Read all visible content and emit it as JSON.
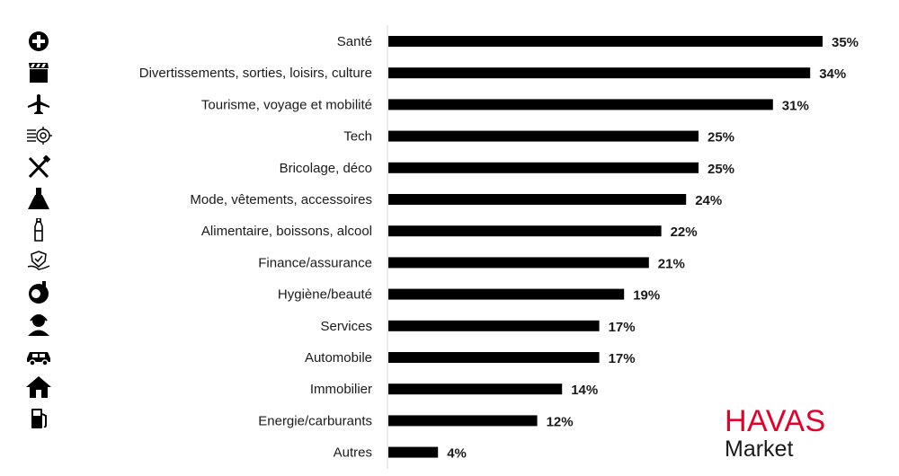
{
  "chart_data": {
    "type": "bar",
    "orientation": "horizontal",
    "categories": [
      "Santé",
      "Divertissements, sorties, loisirs, culture",
      "Tourisme, voyage et mobilité",
      "Tech",
      "Bricolage, déco",
      "Mode, vêtements, accessoires",
      "Alimentaire, boissons, alcool",
      "Finance/assurance",
      "Hygiène/beauté",
      "Services",
      "Automobile",
      "Immobilier",
      "Energie/carburants",
      "Autres"
    ],
    "values": [
      35,
      34,
      31,
      25,
      25,
      24,
      22,
      21,
      19,
      17,
      17,
      14,
      12,
      4
    ],
    "value_labels": [
      "35%",
      "34%",
      "31%",
      "25%",
      "25%",
      "24%",
      "22%",
      "21%",
      "19%",
      "17%",
      "17%",
      "14%",
      "12%",
      "4%"
    ],
    "xlim": [
      0,
      35
    ],
    "grid": false,
    "bar_color": "#000000"
  },
  "icons": [
    "medical-cross-icon",
    "clapperboard-icon",
    "airplane-icon",
    "chip-gear-icon",
    "tools-icon",
    "dress-icon",
    "bottle-icon",
    "shield-hand-icon",
    "beauty-face-icon",
    "person-headset-icon",
    "car-icon",
    "house-icon",
    "fuel-pump-icon"
  ],
  "logo": {
    "brand": "HAVAS",
    "sub": "Market",
    "brand_color": "#e4002b"
  }
}
